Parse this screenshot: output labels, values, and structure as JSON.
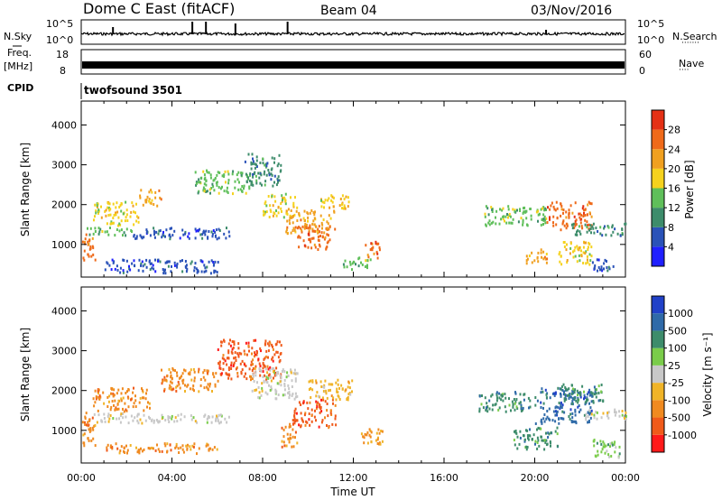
{
  "header": {
    "title": "Dome C East (fitACF)",
    "beam": "Beam 04",
    "date": "03/Nov/2016"
  },
  "summary_panels": {
    "nsky_label": "N.Sky",
    "nsearch_label": "N.Search",
    "nsky_ticks": [
      "10^5",
      "10^0"
    ],
    "nsearch_ticks": [
      "10^5",
      "10^0"
    ],
    "freq_label_1": "Freq.",
    "freq_label_2": "[MHz]",
    "freq_ticks": [
      "18",
      "8"
    ],
    "nave_label": "Nave",
    "nave_ticks": [
      "60",
      "0"
    ],
    "cpid_label": "CPID",
    "cpid_value": "twofsound 3501"
  },
  "colors": {
    "power": [
      "#1f1fff",
      "#2a52b8",
      "#3d8c6b",
      "#5fbf5a",
      "#f5d21e",
      "#f0a020",
      "#ef6a1a",
      "#e43015"
    ],
    "velocity": [
      "#ff1a1a",
      "#f05a1a",
      "#f08a20",
      "#f0b428",
      "#c8c8c8",
      "#7acc4a",
      "#3d8c6b",
      "#2f6aa8",
      "#2141c8"
    ]
  },
  "chart_data": [
    {
      "type": "heatmap",
      "title": "",
      "xlabel": "Time UT",
      "ylabel": "Slant Range [km]",
      "x_ticks": [
        "00:00",
        "04:00",
        "08:00",
        "12:00",
        "16:00",
        "20:00",
        "00:00"
      ],
      "x_range_hours": [
        0,
        24
      ],
      "y_ticks": [
        1000,
        2000,
        3000,
        4000
      ],
      "ylim": [
        180,
        4600
      ],
      "colorbar_label": "Power [dB]",
      "colorbar_ticks": [
        "4",
        "8",
        "12",
        "16",
        "20",
        "24",
        "28"
      ],
      "colorbar_range": [
        0,
        32
      ],
      "regions": [
        {
          "t": [
            0.0,
            0.6
          ],
          "r": [
            600,
            1300
          ],
          "level": 6
        },
        {
          "t": [
            0.2,
            2.2
          ],
          "r": [
            1250,
            1450
          ],
          "level": 3
        },
        {
          "t": [
            2.2,
            6.5
          ],
          "r": [
            1150,
            1450
          ],
          "level": 1
        },
        {
          "t": [
            0.5,
            2.5
          ],
          "r": [
            1500,
            2100
          ],
          "level": 4
        },
        {
          "t": [
            2.5,
            3.5
          ],
          "r": [
            2000,
            2400
          ],
          "level": 5
        },
        {
          "t": [
            5.0,
            7.5
          ],
          "r": [
            2300,
            2900
          ],
          "level": 3
        },
        {
          "t": [
            7.2,
            8.8
          ],
          "r": [
            2500,
            3300
          ],
          "level": 2
        },
        {
          "t": [
            1.0,
            6.0
          ],
          "r": [
            300,
            650
          ],
          "level": 1
        },
        {
          "t": [
            8.0,
            9.5
          ],
          "r": [
            1700,
            2300
          ],
          "level": 4
        },
        {
          "t": [
            9.0,
            11.2
          ],
          "r": [
            1300,
            1900
          ],
          "level": 5
        },
        {
          "t": [
            9.5,
            11.0
          ],
          "r": [
            900,
            1500
          ],
          "level": 6
        },
        {
          "t": [
            10.5,
            11.8
          ],
          "r": [
            1900,
            2300
          ],
          "level": 4
        },
        {
          "t": [
            12.5,
            13.2
          ],
          "r": [
            650,
            1100
          ],
          "level": 6
        },
        {
          "t": [
            11.5,
            12.8
          ],
          "r": [
            400,
            700
          ],
          "level": 3
        },
        {
          "t": [
            17.5,
            20.5
          ],
          "r": [
            1500,
            2000
          ],
          "level": 3
        },
        {
          "t": [
            19.5,
            20.5
          ],
          "r": [
            550,
            900
          ],
          "level": 5
        },
        {
          "t": [
            20.5,
            22.5
          ],
          "r": [
            1400,
            2100
          ],
          "level": 6
        },
        {
          "t": [
            21.5,
            24.0
          ],
          "r": [
            1250,
            1550
          ],
          "level": 2
        },
        {
          "t": [
            21.0,
            22.5
          ],
          "r": [
            500,
            1100
          ],
          "level": 4
        },
        {
          "t": [
            22.5,
            23.5
          ],
          "r": [
            350,
            700
          ],
          "level": 1
        }
      ]
    },
    {
      "type": "heatmap",
      "title": "",
      "xlabel": "Time UT",
      "ylabel": "Slant Range [km]",
      "x_ticks": [
        "00:00",
        "04:00",
        "08:00",
        "12:00",
        "16:00",
        "20:00",
        "00:00"
      ],
      "x_range_hours": [
        0,
        24
      ],
      "y_ticks": [
        1000,
        2000,
        3000,
        4000
      ],
      "ylim": [
        180,
        4600
      ],
      "colorbar_label": "Velocity [m s⁻¹]",
      "colorbar_ticks": [
        "-1000",
        "-500",
        "-100",
        "-25",
        "25",
        "100",
        "500",
        "1000"
      ],
      "regions": [
        {
          "t": [
            0.0,
            0.6
          ],
          "r": [
            600,
            1500
          ],
          "level": 2
        },
        {
          "t": [
            0.5,
            3.0
          ],
          "r": [
            1200,
            1450
          ],
          "level": 4
        },
        {
          "t": [
            3.0,
            6.5
          ],
          "r": [
            1200,
            1450
          ],
          "level": 4
        },
        {
          "t": [
            0.5,
            3.0
          ],
          "r": [
            1500,
            2100
          ],
          "level": 2
        },
        {
          "t": [
            1.0,
            6.0
          ],
          "r": [
            450,
            700
          ],
          "level": 2
        },
        {
          "t": [
            3.5,
            6.0
          ],
          "r": [
            2000,
            2600
          ],
          "level": 2
        },
        {
          "t": [
            6.0,
            8.8
          ],
          "r": [
            2300,
            3300
          ],
          "level": 1
        },
        {
          "t": [
            7.5,
            9.5
          ],
          "r": [
            1800,
            2600
          ],
          "level": 4
        },
        {
          "t": [
            9.3,
            11.2
          ],
          "r": [
            1100,
            1800
          ],
          "level": 1
        },
        {
          "t": [
            8.8,
            9.5
          ],
          "r": [
            600,
            1200
          ],
          "level": 2
        },
        {
          "t": [
            10.0,
            12.0
          ],
          "r": [
            1800,
            2300
          ],
          "level": 3
        },
        {
          "t": [
            12.3,
            13.3
          ],
          "r": [
            650,
            1100
          ],
          "level": 2
        },
        {
          "t": [
            17.5,
            20.0
          ],
          "r": [
            1500,
            2000
          ],
          "level": 6
        },
        {
          "t": [
            19.0,
            21.0
          ],
          "r": [
            550,
            1100
          ],
          "level": 6
        },
        {
          "t": [
            20.0,
            22.5
          ],
          "r": [
            1200,
            2100
          ],
          "level": 7
        },
        {
          "t": [
            22.0,
            24.0
          ],
          "r": [
            1300,
            1550
          ],
          "level": 4
        },
        {
          "t": [
            21.0,
            23.0
          ],
          "r": [
            1700,
            2200
          ],
          "level": 6
        },
        {
          "t": [
            22.5,
            23.8
          ],
          "r": [
            350,
            800
          ],
          "level": 5
        }
      ]
    }
  ]
}
